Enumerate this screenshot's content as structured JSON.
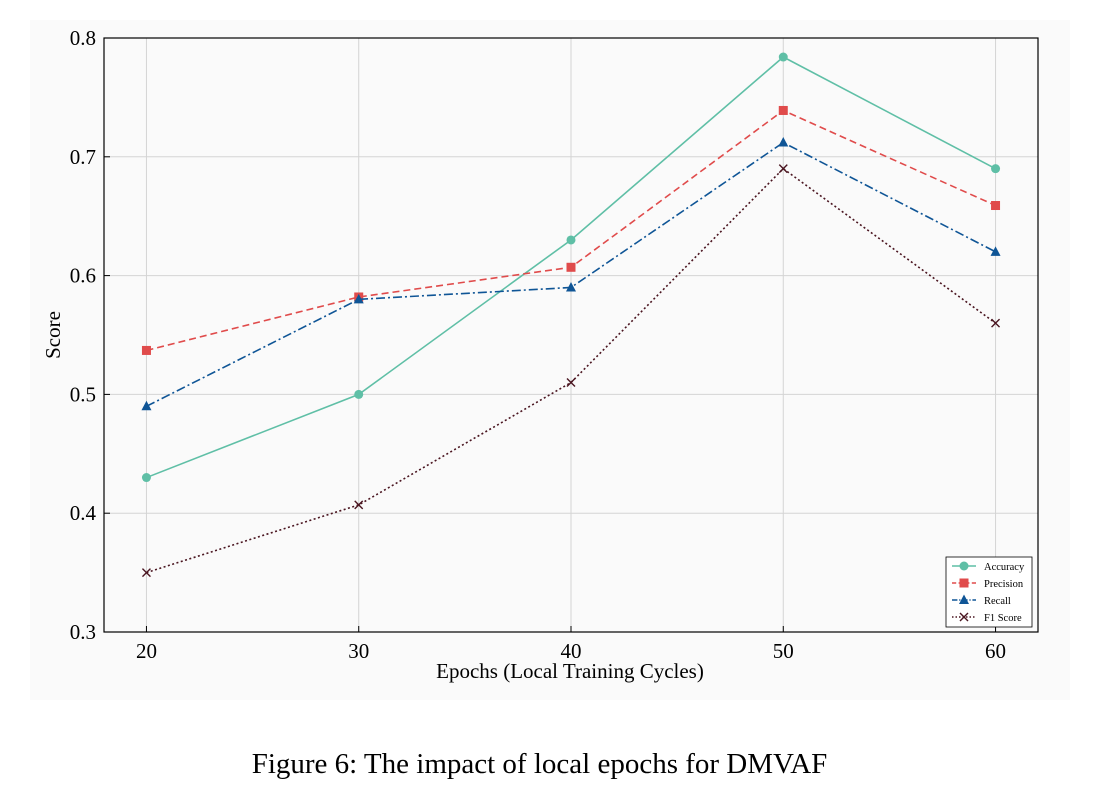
{
  "chart_data": {
    "type": "line",
    "xlabel": "Epochs (Local Training Cycles)",
    "ylabel": "Score",
    "x": [
      20,
      30,
      40,
      50,
      60
    ],
    "xlim": [
      18,
      62
    ],
    "ylim": [
      0.3,
      0.8
    ],
    "yticks": [
      "0.3",
      "0.4",
      "0.5",
      "0.6",
      "0.7",
      "0.8"
    ],
    "xticks": [
      "20",
      "30",
      "40",
      "50",
      "60"
    ],
    "grid": true,
    "legend_position": "bottom-right",
    "series": [
      {
        "name": "Accuracy",
        "values": [
          0.43,
          0.5,
          0.63,
          0.784,
          0.69
        ],
        "color": "#5fbfa6",
        "dash": "solid",
        "marker": "circle"
      },
      {
        "name": "Precision",
        "values": [
          0.537,
          0.582,
          0.607,
          0.739,
          0.659
        ],
        "color": "#e04b4b",
        "dash": "dashed",
        "marker": "square"
      },
      {
        "name": "Recall",
        "values": [
          0.49,
          0.58,
          0.59,
          0.712,
          0.62
        ],
        "color": "#0f5596",
        "dash": "dashdot",
        "marker": "triangle"
      },
      {
        "name": "F1 Score",
        "values": [
          0.35,
          0.407,
          0.51,
          0.69,
          0.56
        ],
        "color": "#4a1520",
        "dash": "dotted",
        "marker": "x"
      }
    ]
  },
  "caption": "Figure 6: The impact of local epochs for DMVAF"
}
